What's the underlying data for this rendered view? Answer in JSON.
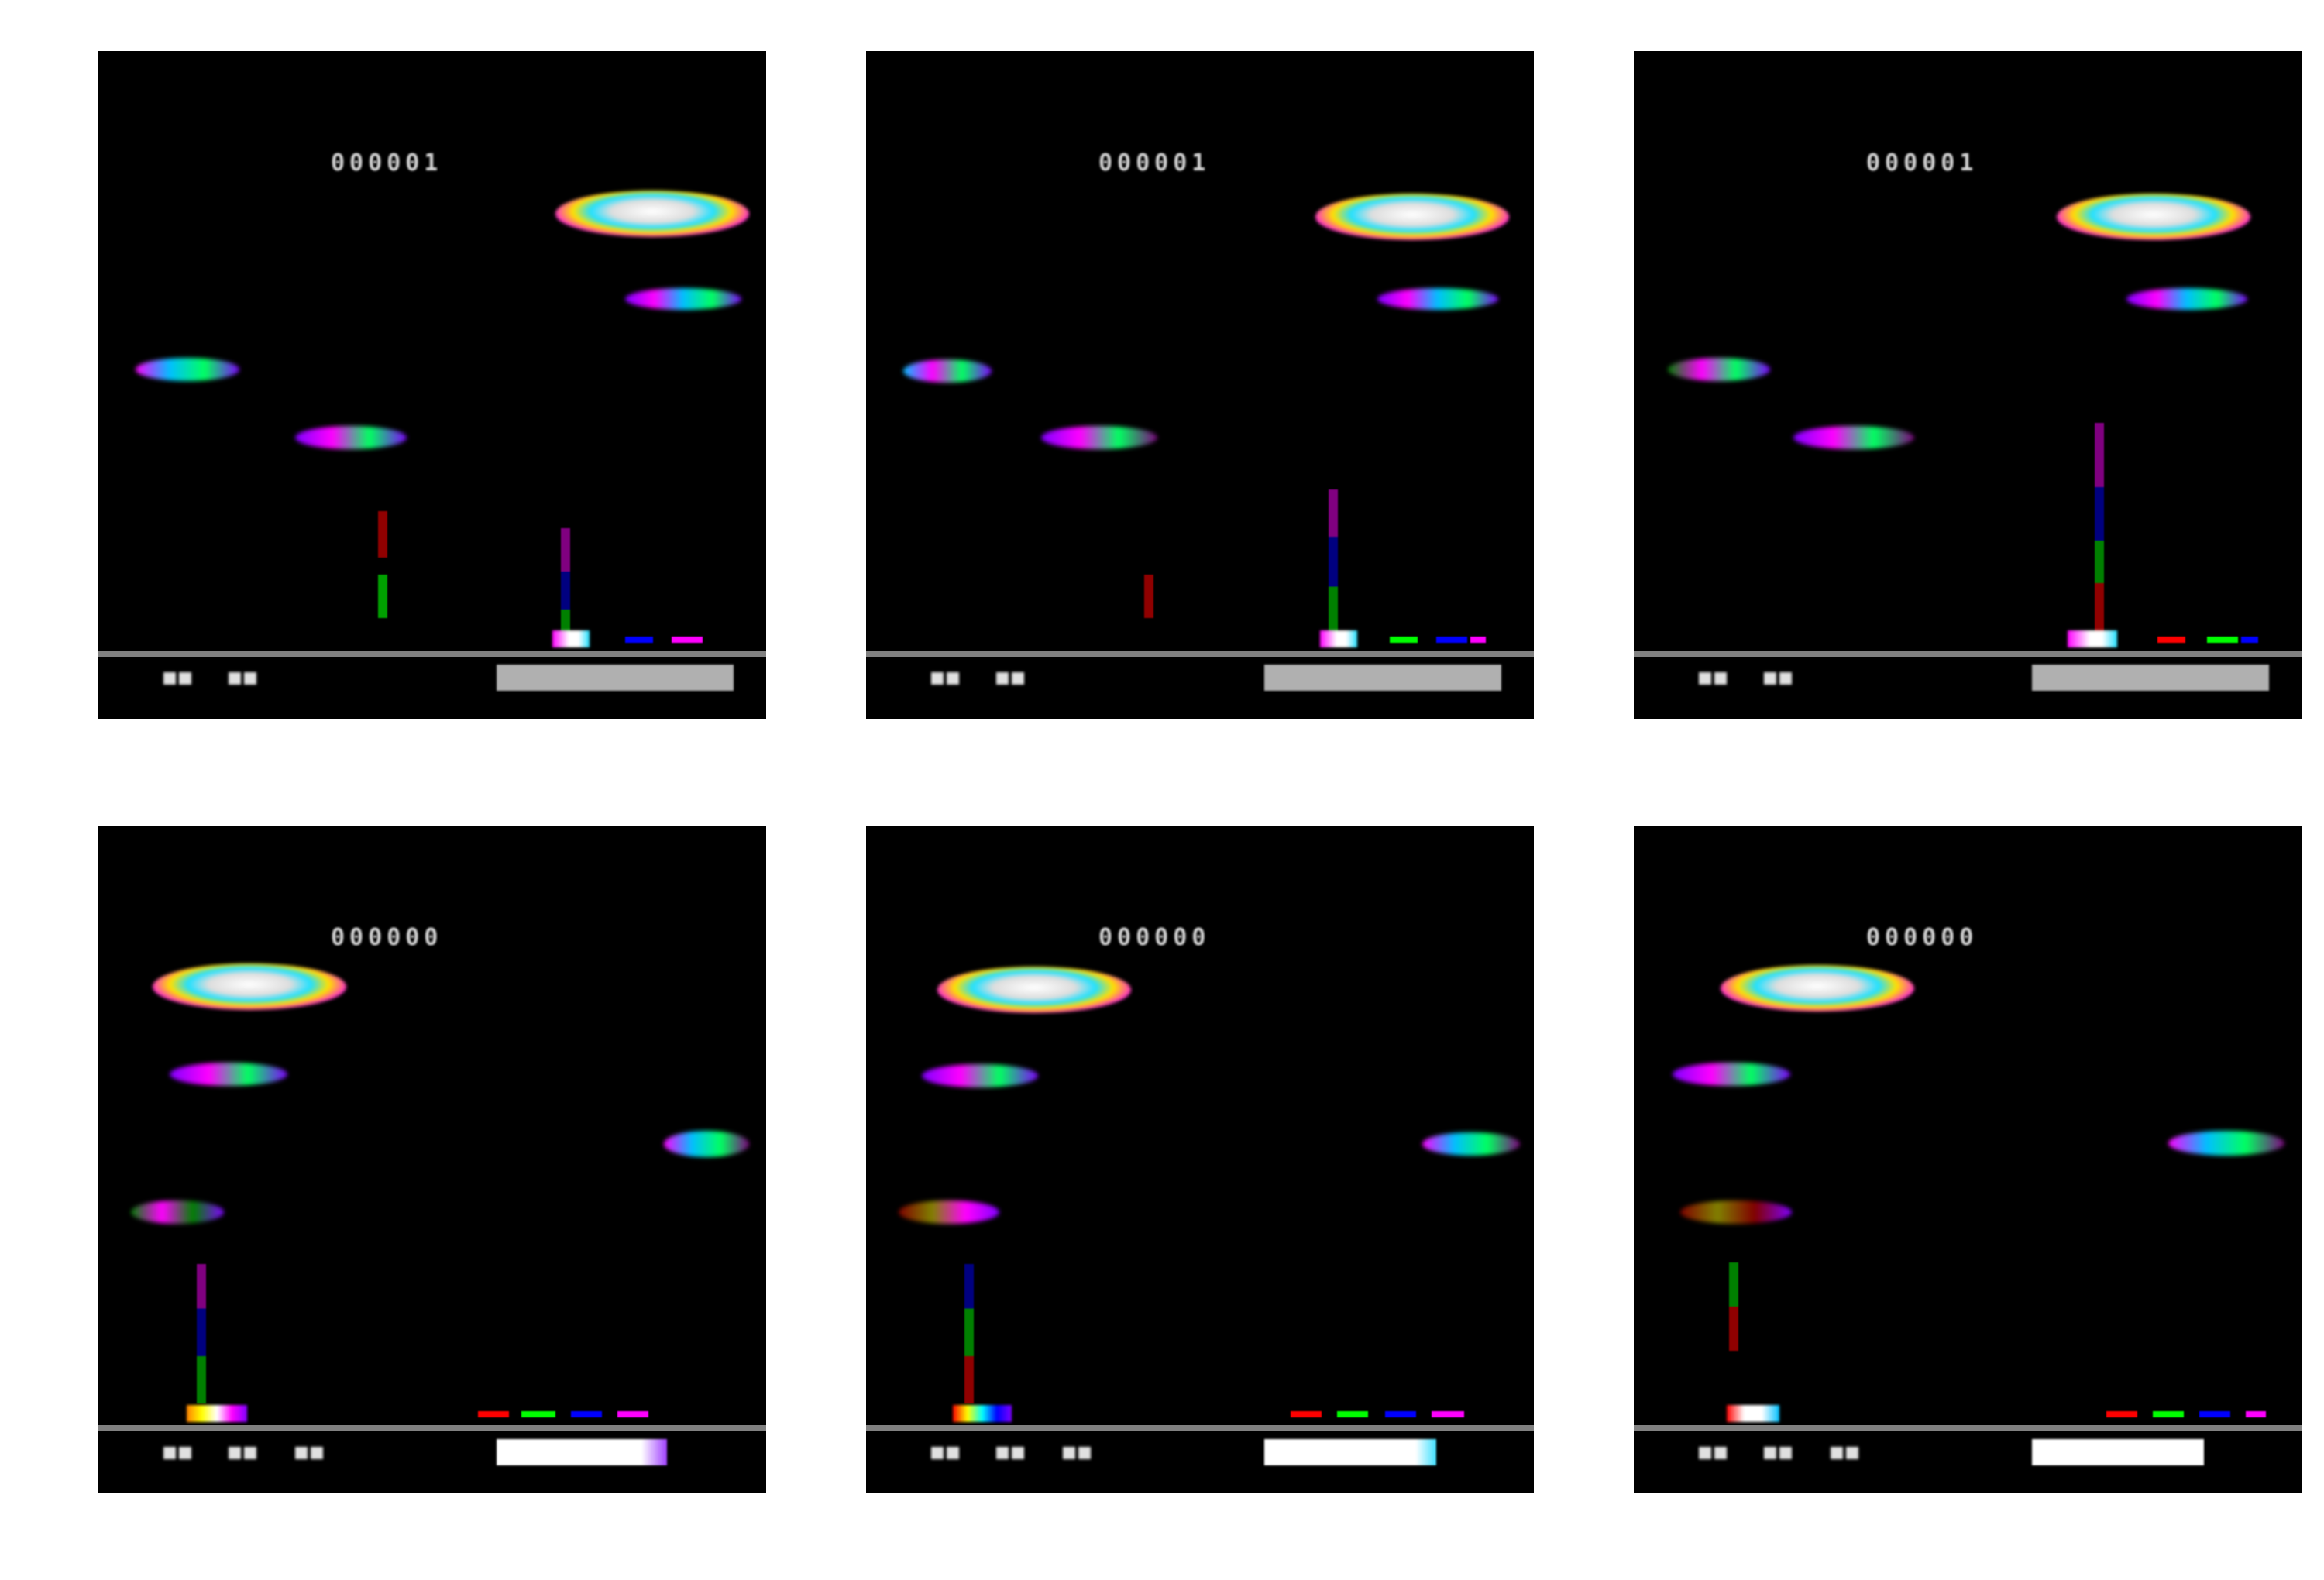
{
  "layout": "2x3 grid of game frames",
  "colors": {
    "background": "#000000",
    "ground": "#808080",
    "hud_text": "#d8d8d8",
    "energy_bar": "#b0b0b0",
    "energy_bar_full": "#ffffff"
  },
  "frames": [
    {
      "score": "000001",
      "lives": 2,
      "energy_fraction": 1.0,
      "ufo_side": "right"
    },
    {
      "score": "000001",
      "lives": 2,
      "energy_fraction": 1.0,
      "ufo_side": "right"
    },
    {
      "score": "000001",
      "lives": 2,
      "energy_fraction": 1.0,
      "ufo_side": "right"
    },
    {
      "score": "000000",
      "lives": 3,
      "energy_fraction": 0.6,
      "ufo_side": "left"
    },
    {
      "score": "000000",
      "lives": 3,
      "energy_fraction": 0.6,
      "ufo_side": "left"
    },
    {
      "score": "000000",
      "lives": 3,
      "energy_fraction": 0.6,
      "ufo_side": "left"
    }
  ]
}
